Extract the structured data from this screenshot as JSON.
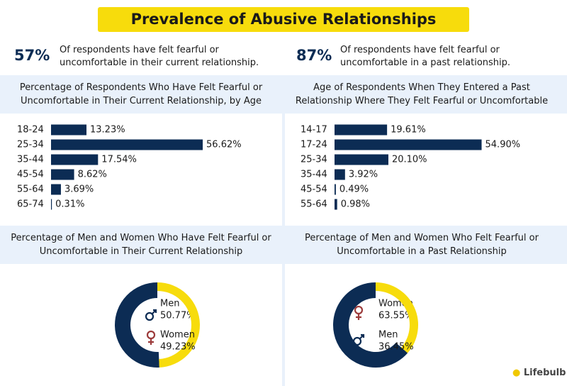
{
  "title": "Prevalence of Abusive Relationships",
  "stats": [
    {
      "value": "57%",
      "text": "Of respondents have felt fearful or uncomfortable in their current relationship."
    },
    {
      "value": "87%",
      "text": "Of respondents have felt fearful or uncomfortable in a past relationship."
    }
  ],
  "brand": "Lifebulb",
  "chart_data": [
    {
      "type": "bar",
      "title": "Percentage of Respondents Who Have Felt Fearful or Uncomfortable in Their Current Relationship, by Age",
      "categories": [
        "18-24",
        "25-34",
        "35-44",
        "45-54",
        "55-64",
        "65-74"
      ],
      "values": [
        13.23,
        56.62,
        17.54,
        8.62,
        3.69,
        0.31
      ],
      "value_labels": [
        "13.23%",
        "56.62%",
        "17.54%",
        "8.62%",
        "3.69%",
        "0.31%"
      ],
      "color": "#0c2c54"
    },
    {
      "type": "bar",
      "title": "Age of Respondents When They Entered a Past Relationship Where They Felt Fearful or Uncomfortable",
      "categories": [
        "14-17",
        "17-24",
        "25-34",
        "35-44",
        "45-54",
        "55-64"
      ],
      "values": [
        19.61,
        54.9,
        20.1,
        3.92,
        0.49,
        0.98
      ],
      "value_labels": [
        "19.61%",
        "54.90%",
        "20.10%",
        "3.92%",
        "0.49%",
        "0.98%"
      ],
      "color": "#0c2c54"
    },
    {
      "type": "donut",
      "title": "Percentage of Men and Women Who Have Felt Fearful or Uncomfortable in Their Current Relationship",
      "categories": [
        "Men",
        "Women"
      ],
      "values": [
        50.77,
        49.23
      ],
      "value_labels": [
        "50.77%",
        "49.23%"
      ],
      "colors": [
        "#0c2c54",
        "#f7dc0c"
      ]
    },
    {
      "type": "donut",
      "title": "Percentage of Men and Women Who Felt Fearful or Uncomfortable in a Past Relationship",
      "categories": [
        "Women",
        "Men"
      ],
      "values": [
        63.55,
        36.45
      ],
      "value_labels": [
        "63.55%",
        "36.45%"
      ],
      "colors": [
        "#0c2c54",
        "#f7dc0c"
      ]
    }
  ]
}
